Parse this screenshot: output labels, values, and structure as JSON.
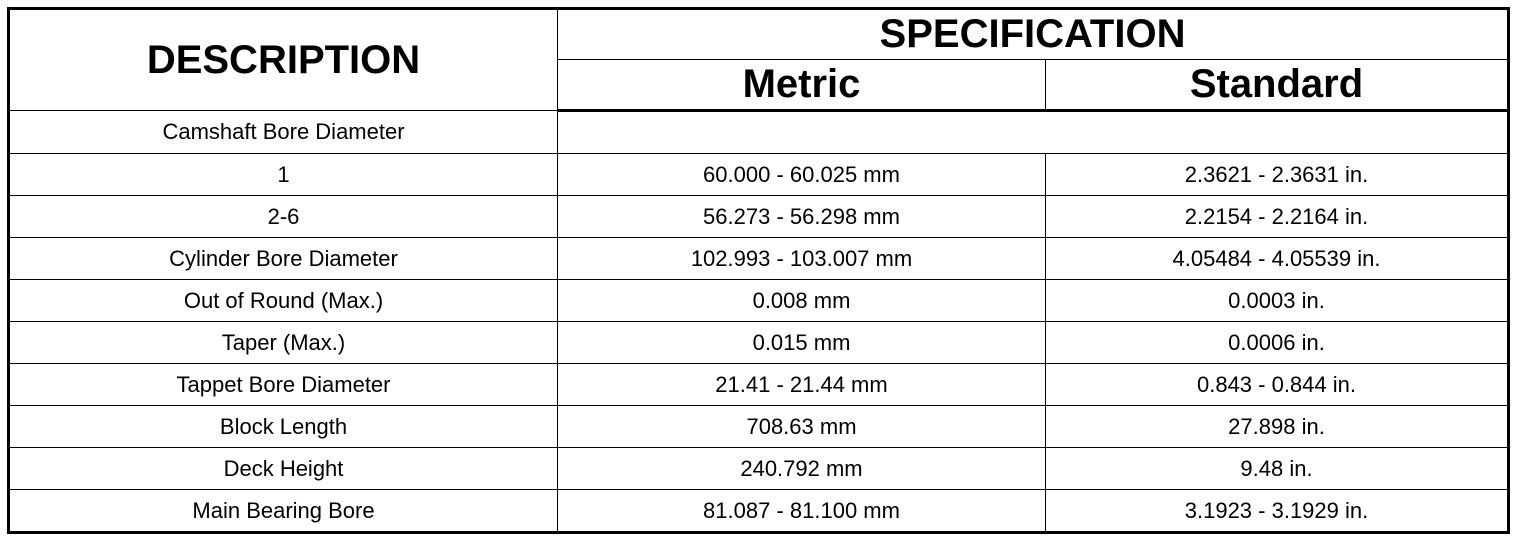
{
  "table": {
    "header": {
      "description": "DESCRIPTION",
      "specification": "SPECIFICATION",
      "metric": "Metric",
      "standard": "Standard"
    },
    "rows": [
      [
        "Camshaft Bore Diameter"
      ],
      [
        "1",
        "60.000 - 60.025 mm",
        "2.3621 - 2.3631 in."
      ],
      [
        "2-6",
        "56.273 - 56.298 mm",
        "2.2154 - 2.2164 in."
      ],
      [
        "Cylinder Bore Diameter",
        "102.993 - 103.007 mm",
        "4.05484 - 4.05539 in."
      ],
      [
        "Out of Round (Max.)",
        "0.008 mm",
        "0.0003 in."
      ],
      [
        "Taper (Max.)",
        "0.015 mm",
        "0.0006 in."
      ],
      [
        "Tappet Bore Diameter",
        "21.41 - 21.44 mm",
        "0.843 - 0.844 in."
      ],
      [
        "Block Length",
        "708.63 mm",
        "27.898 in."
      ],
      [
        "Deck Height",
        "240.792 mm",
        "9.48 in."
      ],
      [
        "Main Bearing Bore",
        "81.087 - 81.100 mm",
        "3.1923 - 3.1929 in."
      ]
    ]
  }
}
